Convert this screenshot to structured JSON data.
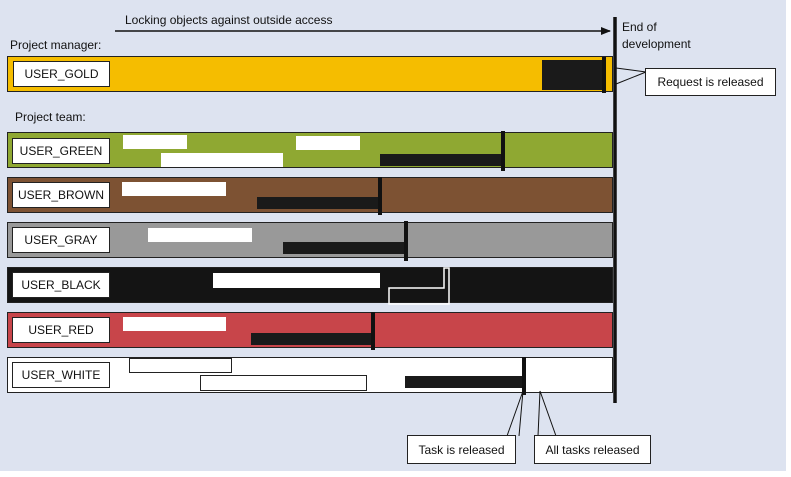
{
  "header": {
    "arrow_label": "Locking objects against outside access",
    "end_label_line1": "End of",
    "end_label_line2": "development"
  },
  "sections": {
    "manager_label": "Project manager:",
    "team_label": "Project team:"
  },
  "users": [
    {
      "name": "USER_GOLD",
      "color": "#f5bd00"
    },
    {
      "name": "USER_GREEN",
      "color": "#8fa832"
    },
    {
      "name": "USER_BROWN",
      "color": "#7d5233"
    },
    {
      "name": "USER_GRAY",
      "color": "#999999"
    },
    {
      "name": "USER_BLACK",
      "color": "#141414"
    },
    {
      "name": "USER_RED",
      "color": "#c8454a"
    },
    {
      "name": "USER_WHITE",
      "color": "#ffffff"
    }
  ],
  "callouts": {
    "request_released": "Request is released",
    "task_released": "Task is released",
    "all_tasks_released": "All tasks released"
  }
}
